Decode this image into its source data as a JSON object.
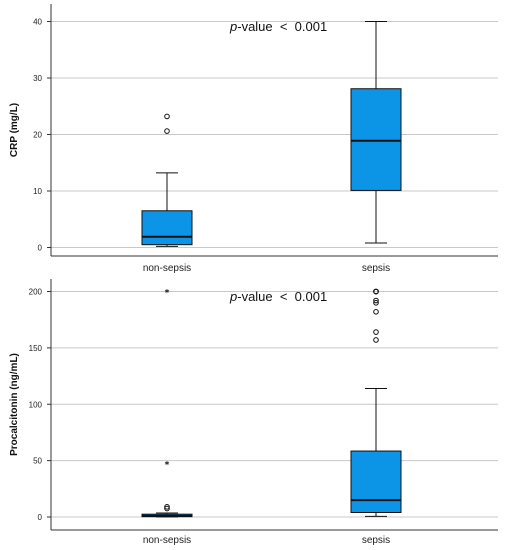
{
  "chart_data": [
    {
      "type": "box",
      "ylabel": "CRP (mg/L)",
      "annotation": {
        "italic": "p",
        "text": "-value  <  0.001"
      },
      "ylim": [
        0,
        40
      ],
      "yticks": [
        0,
        10,
        20,
        30,
        40
      ],
      "grid": true,
      "box_color": "#0c95e6",
      "categories": [
        "non-sepsis",
        "sepsis"
      ],
      "boxes": [
        {
          "category": "non-sepsis",
          "min": 0.2,
          "q1": 0.5,
          "median": 1.9,
          "q3": 6.5,
          "max": 13.2,
          "outliers": [
            20.6,
            23.2
          ],
          "extremes": []
        },
        {
          "category": "sepsis",
          "min": 0.8,
          "q1": 10.1,
          "median": 18.9,
          "q3": 28.1,
          "max": 40.0,
          "outliers": [],
          "extremes": []
        }
      ]
    },
    {
      "type": "box",
      "ylabel": "Procalcitonin (ng/mL)",
      "annotation": {
        "italic": "p",
        "text": "-value  <  0.001"
      },
      "ylim": [
        0,
        200
      ],
      "yticks": [
        0,
        50,
        100,
        150,
        200
      ],
      "grid": true,
      "box_color": "#0c95e6",
      "categories": [
        "non-sepsis",
        "sepsis"
      ],
      "boxes": [
        {
          "category": "non-sepsis",
          "min": 0.1,
          "q1": 0.3,
          "median": 1.0,
          "q3": 2.5,
          "max": 3.5,
          "outliers": [
            7.5,
            9.0
          ],
          "extremes": [
            47.5,
            200
          ]
        },
        {
          "category": "sepsis",
          "min": 0.5,
          "q1": 4.0,
          "median": 15.0,
          "q3": 58.5,
          "max": 114,
          "outliers": [
            157,
            164,
            182,
            190,
            192,
            200,
            200,
            200
          ],
          "extremes": []
        }
      ]
    }
  ]
}
